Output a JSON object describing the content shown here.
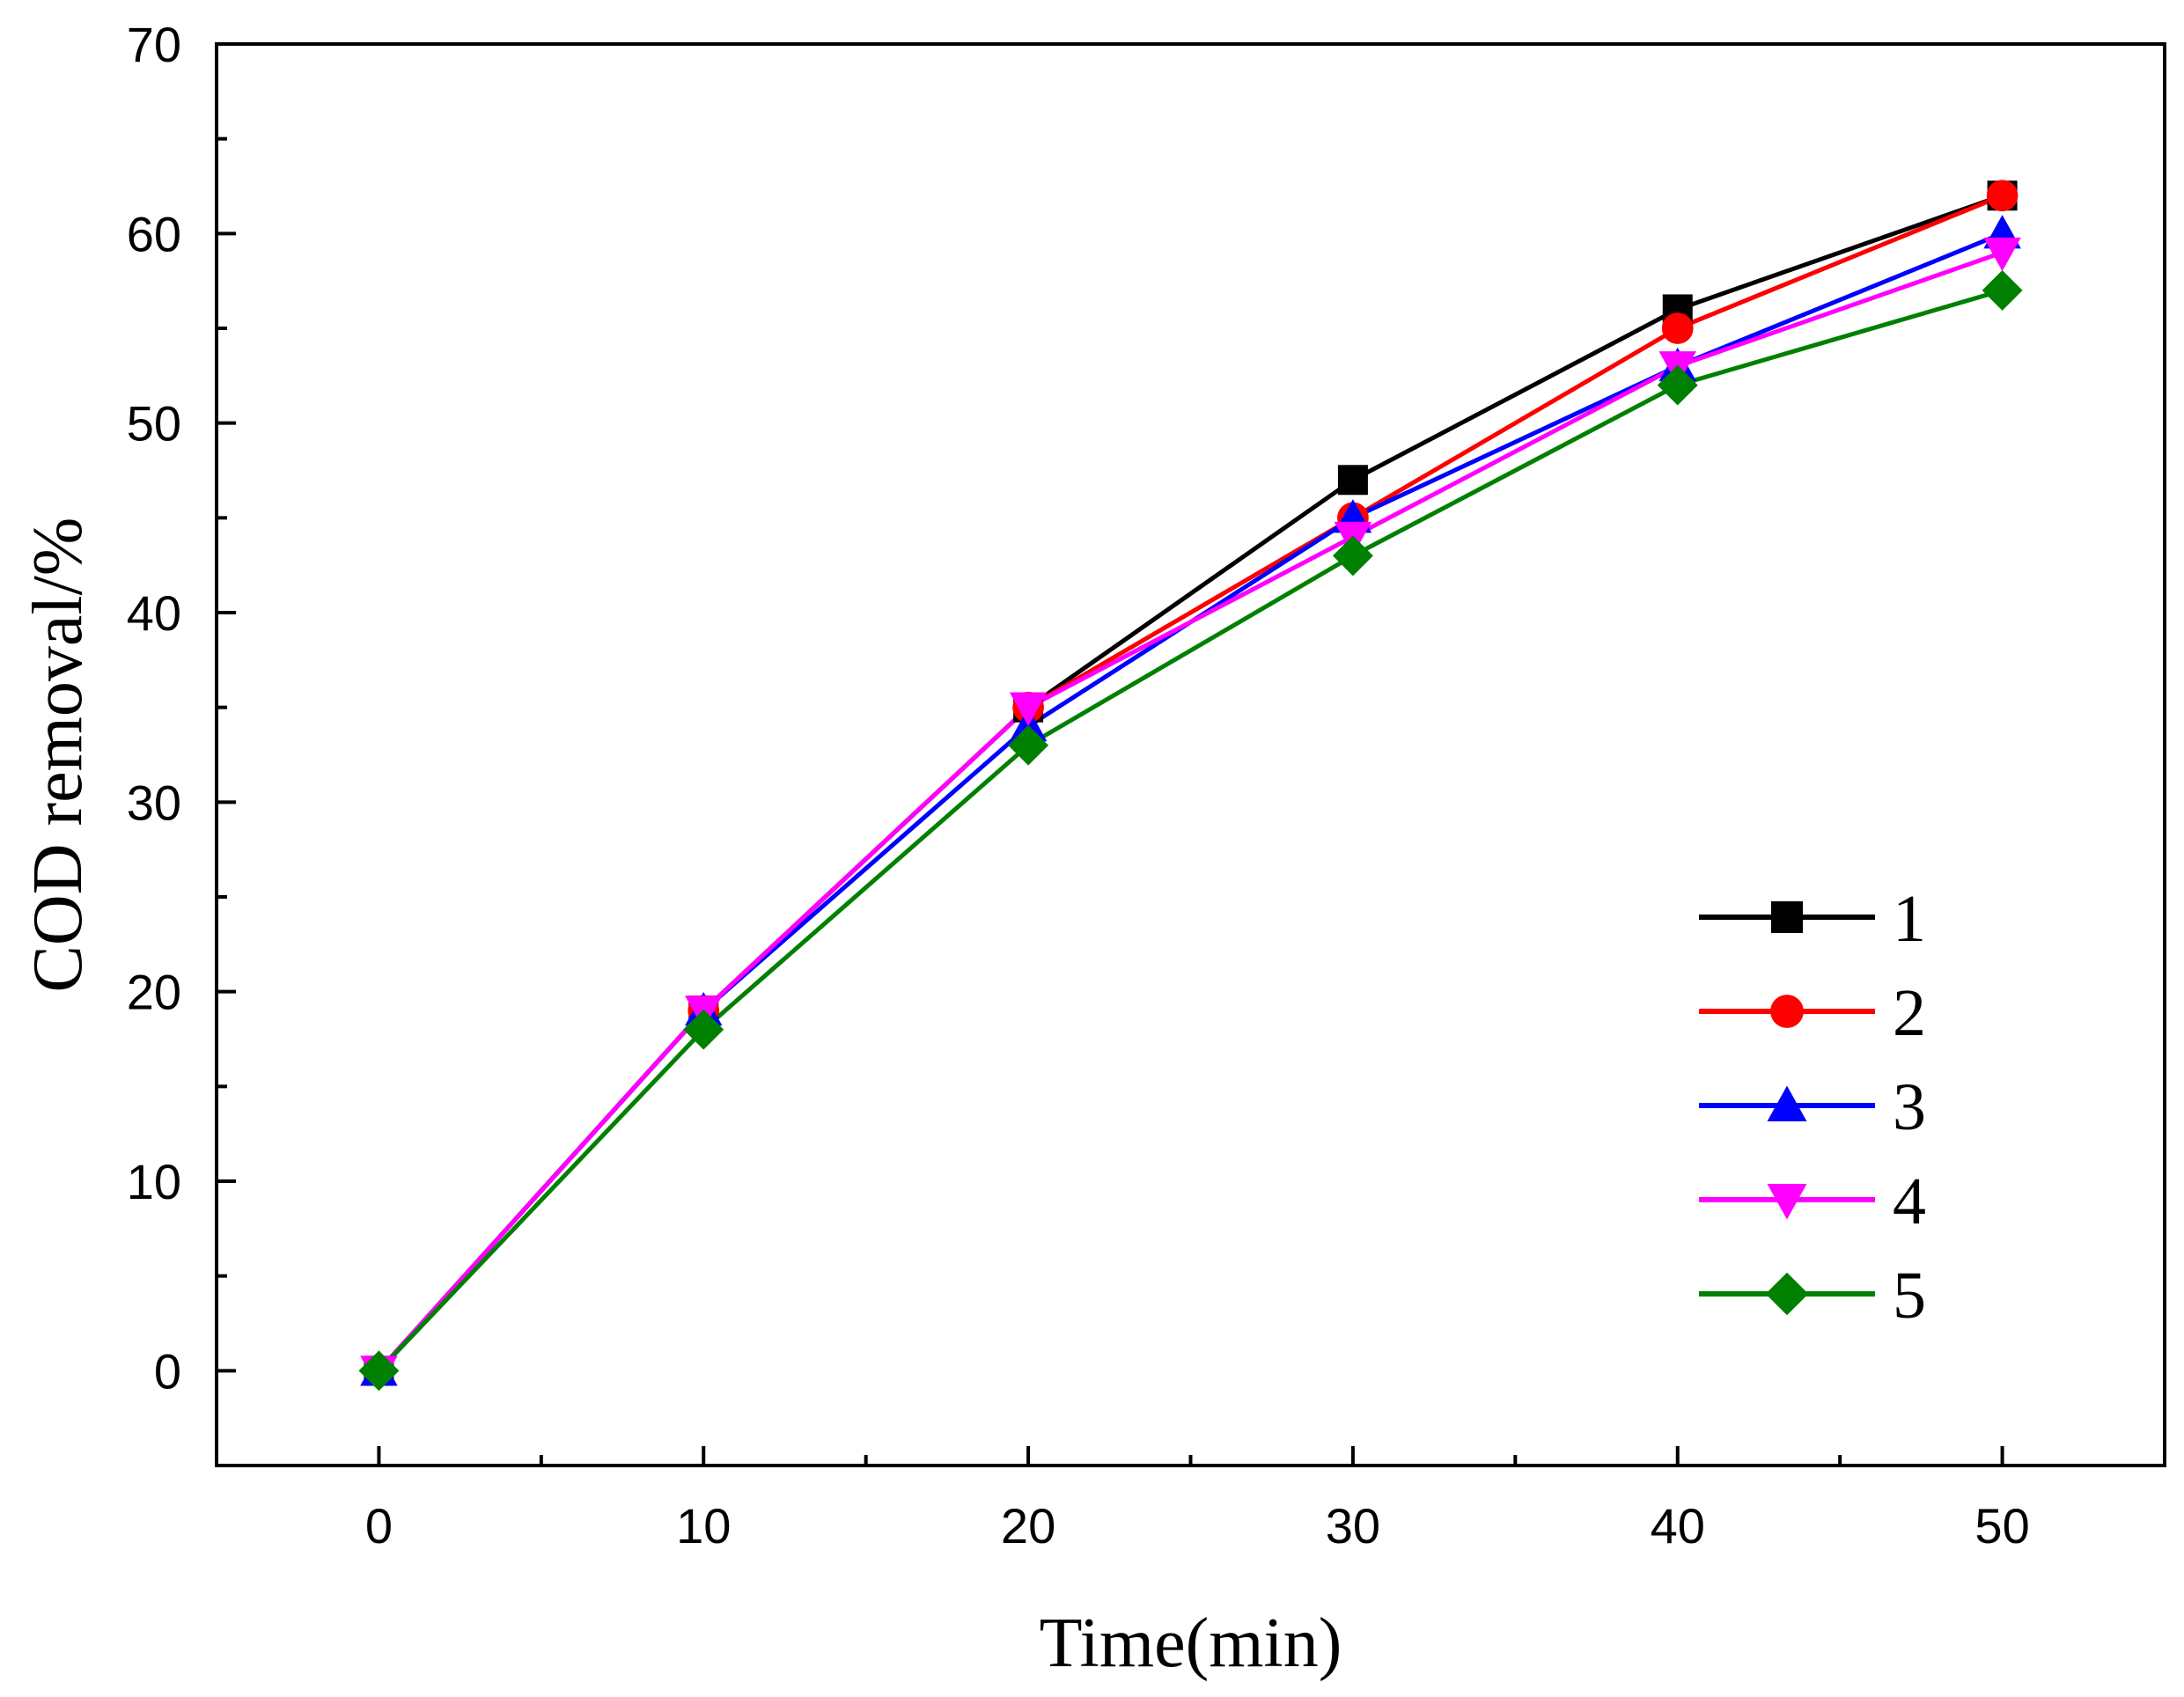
{
  "chart_data": {
    "type": "line",
    "title": "",
    "xlabel": "Time(min)",
    "ylabel": "COD removal/%",
    "x": [
      0,
      10,
      20,
      30,
      40,
      50
    ],
    "xlim": [
      -5,
      55
    ],
    "ylim": [
      -5,
      70
    ],
    "xticks": [
      0,
      10,
      20,
      30,
      40,
      50
    ],
    "xtick_labels": [
      "0",
      "10",
      "20",
      "30",
      "40",
      "50"
    ],
    "yticks": [
      0,
      10,
      20,
      30,
      40,
      50,
      60,
      70
    ],
    "ytick_labels": [
      "0",
      "10",
      "20",
      "30",
      "40",
      "50",
      "60",
      "70"
    ],
    "grid": false,
    "legend_position": "lower-right",
    "series": [
      {
        "name": "1",
        "color": "#000000",
        "marker": "square",
        "values": [
          0,
          19,
          35,
          47,
          56,
          62
        ]
      },
      {
        "name": "2",
        "color": "#ff0000",
        "marker": "circle",
        "values": [
          0,
          19,
          35,
          45,
          55,
          62
        ]
      },
      {
        "name": "3",
        "color": "#0000ff",
        "marker": "triangle-up",
        "values": [
          0,
          19,
          34,
          45,
          53,
          60
        ]
      },
      {
        "name": "4",
        "color": "#ff00ff",
        "marker": "triangle-down",
        "values": [
          0,
          19,
          35,
          44,
          53,
          59
        ]
      },
      {
        "name": "5",
        "color": "#008000",
        "marker": "diamond",
        "values": [
          0,
          18,
          33,
          43,
          52,
          57
        ]
      }
    ]
  }
}
